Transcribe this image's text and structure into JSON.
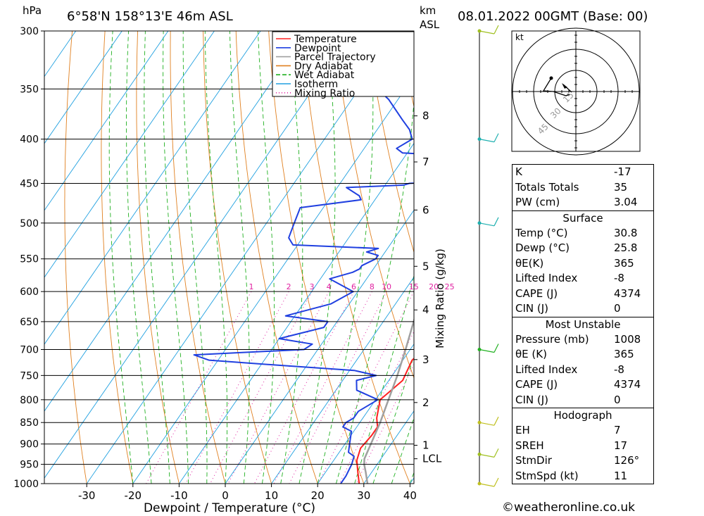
{
  "header": {
    "location": "6°58'N  158°13'E  46m  ASL",
    "datetime": "08.01.2022  00GMT  (Base: 00)",
    "hpa_label": "hPa",
    "km_label": "km",
    "asl_label": "ASL"
  },
  "legend": [
    "Temperature",
    "Dewpoint",
    "Parcel Trajectory",
    "Dry Adiabat",
    "Wet Adiabat",
    "Isotherm",
    "Mixing Ratio"
  ],
  "colors": {
    "temperature": "#ff2020",
    "dewpoint": "#2040e0",
    "parcel": "#a0a0a0",
    "dry_adiabat": "#e08020",
    "wet_adiabat": "#20b020",
    "isotherm": "#20a0e0",
    "mixing_ratio": "#e020a0"
  },
  "chart_data": {
    "type": "line",
    "xlabel": "Dewpoint / Temperature (°C)",
    "ylabel_right": "Mixing Ratio (g/kg)",
    "pressure_ticks": [
      300,
      350,
      400,
      450,
      500,
      550,
      600,
      650,
      700,
      750,
      800,
      850,
      900,
      950,
      1000
    ],
    "temp_ticks": [
      -30,
      -20,
      -10,
      0,
      10,
      20,
      30,
      40
    ],
    "height_ticks_km": [
      {
        "label": "8",
        "p": 376
      },
      {
        "label": "7",
        "p": 425
      },
      {
        "label": "6",
        "p": 483
      },
      {
        "label": "5",
        "p": 561
      },
      {
        "label": "4",
        "p": 630
      },
      {
        "label": "3",
        "p": 719
      },
      {
        "label": "2",
        "p": 806
      },
      {
        "label": "1",
        "p": 903
      },
      {
        "label": "LCL",
        "p": 936
      }
    ],
    "mixing_ratio_labels": [
      "1",
      "2",
      "3",
      "4",
      "6",
      "8",
      "10",
      "15",
      "20",
      "25"
    ],
    "mixing_ratio_values": [
      1,
      2,
      3,
      4,
      6,
      8,
      10,
      15,
      20,
      25
    ],
    "series": [
      {
        "name": "Temperature",
        "points": [
          [
            1008,
            30.8
          ],
          [
            1000,
            29
          ],
          [
            970,
            27
          ],
          [
            940,
            25
          ],
          [
            910,
            24
          ],
          [
            880,
            24.5
          ],
          [
            860,
            24.5
          ],
          [
            840,
            23
          ],
          [
            800,
            21
          ],
          [
            780,
            22
          ],
          [
            760,
            23
          ],
          [
            740,
            22.5
          ],
          [
            720,
            22
          ],
          [
            700,
            23
          ],
          [
            680,
            21
          ],
          [
            660,
            19.5
          ],
          [
            640,
            18
          ],
          [
            620,
            16.5
          ],
          [
            600,
            14.5
          ],
          [
            580,
            12
          ],
          [
            560,
            10
          ],
          [
            540,
            9
          ],
          [
            520,
            7.5
          ],
          [
            500,
            5
          ],
          [
            480,
            2
          ],
          [
            460,
            -1
          ],
          [
            440,
            -3
          ],
          [
            430,
            -4.5
          ],
          [
            420,
            -5
          ],
          [
            410,
            -5
          ],
          [
            400,
            -7
          ],
          [
            380,
            -10
          ],
          [
            360,
            -13.5
          ],
          [
            350,
            -16
          ],
          [
            330,
            -20
          ],
          [
            310,
            -24
          ],
          [
            300,
            -27
          ]
        ]
      },
      {
        "name": "Dewpoint",
        "points": [
          [
            1008,
            26
          ],
          [
            1000,
            25
          ],
          [
            980,
            25
          ],
          [
            950,
            24.5
          ],
          [
            930,
            23.8
          ],
          [
            920,
            22
          ],
          [
            900,
            21
          ],
          [
            880,
            20
          ],
          [
            870,
            19.5
          ],
          [
            860,
            17
          ],
          [
            850,
            17
          ],
          [
            840,
            18
          ],
          [
            825,
            18
          ],
          [
            800,
            20.5
          ],
          [
            780,
            14.5
          ],
          [
            760,
            13
          ],
          [
            750,
            16.5
          ],
          [
            740,
            11
          ],
          [
            730,
            -6
          ],
          [
            720,
            -22
          ],
          [
            710,
            -26
          ],
          [
            700,
            -3
          ],
          [
            690,
            -2
          ],
          [
            680,
            -10
          ],
          [
            660,
            -2
          ],
          [
            650,
            -2
          ],
          [
            640,
            -12
          ],
          [
            620,
            -4
          ],
          [
            600,
            -1
          ],
          [
            580,
            -8
          ],
          [
            570,
            -4
          ],
          [
            565,
            -3
          ],
          [
            560,
            -3
          ],
          [
            550,
            -1
          ],
          [
            545,
            -1
          ],
          [
            540,
            -4
          ],
          [
            535,
            -2
          ],
          [
            530,
            -21
          ],
          [
            520,
            -23
          ],
          [
            500,
            -24
          ],
          [
            480,
            -25
          ],
          [
            470,
            -13
          ],
          [
            465,
            -14
          ],
          [
            455,
            -18
          ],
          [
            452,
            -6
          ],
          [
            450,
            -5
          ],
          [
            445,
            13
          ],
          [
            440,
            14
          ],
          [
            430,
            14
          ],
          [
            420,
            10
          ],
          [
            415,
            -11
          ],
          [
            410,
            -13
          ],
          [
            400,
            -11
          ],
          [
            390,
            -13
          ],
          [
            380,
            -16
          ],
          [
            360,
            -22
          ],
          [
            350,
            -26
          ],
          [
            340,
            -24
          ],
          [
            330,
            -15
          ],
          [
            300,
            -24
          ]
        ]
      },
      {
        "name": "Parcel Trajectory",
        "points": [
          [
            1000,
            30.8
          ],
          [
            970,
            28.7
          ],
          [
            950,
            27.2
          ],
          [
            936,
            26.4
          ],
          [
            900,
            25.6
          ],
          [
            850,
            24.4
          ],
          [
            800,
            22.8
          ],
          [
            750,
            21.1
          ],
          [
            700,
            19.0
          ],
          [
            650,
            16.6
          ],
          [
            600,
            13.9
          ],
          [
            550,
            10.6
          ],
          [
            500,
            6.8
          ],
          [
            450,
            2.3
          ],
          [
            400,
            -3.2
          ],
          [
            350,
            -10.3
          ],
          [
            300,
            -18.5
          ]
        ]
      }
    ]
  },
  "hodograph": {
    "unit_label": "kt",
    "ring_labels": [
      "15",
      "30",
      "45"
    ]
  },
  "wind_barbs": [
    {
      "p": 300,
      "color": "#a0c020"
    },
    {
      "p": 400,
      "color": "#20b0b0"
    },
    {
      "p": 500,
      "color": "#20b0b0"
    },
    {
      "p": 700,
      "color": "#20b020"
    },
    {
      "p": 850,
      "color": "#c0c020"
    },
    {
      "p": 925,
      "color": "#a0c020"
    },
    {
      "p": 1000,
      "color": "#c0c020"
    }
  ],
  "indices": {
    "general": [
      {
        "label": "K",
        "value": "-17"
      },
      {
        "label": "Totals Totals",
        "value": "35"
      },
      {
        "label": "PW (cm)",
        "value": "3.04"
      }
    ],
    "surface": {
      "title": "Surface",
      "rows": [
        {
          "label": "Temp (°C)",
          "value": "30.8"
        },
        {
          "label": "Dewp (°C)",
          "value": "25.8"
        },
        {
          "label": "θE(K)",
          "value": "365"
        },
        {
          "label": "Lifted Index",
          "value": "-8"
        },
        {
          "label": "CAPE (J)",
          "value": "4374"
        },
        {
          "label": "CIN (J)",
          "value": "0"
        }
      ]
    },
    "most_unstable": {
      "title": "Most Unstable",
      "rows": [
        {
          "label": "Pressure (mb)",
          "value": "1008"
        },
        {
          "label": "θE (K)",
          "value": "365"
        },
        {
          "label": "Lifted Index",
          "value": "-8"
        },
        {
          "label": "CAPE (J)",
          "value": "4374"
        },
        {
          "label": "CIN (J)",
          "value": "0"
        }
      ]
    },
    "hodograph": {
      "title": "Hodograph",
      "rows": [
        {
          "label": "EH",
          "value": "7"
        },
        {
          "label": "SREH",
          "value": "17"
        },
        {
          "label": "StmDir",
          "value": "126°"
        },
        {
          "label": "StmSpd (kt)",
          "value": "11"
        }
      ]
    }
  },
  "footer": "©weatheronline.co.uk"
}
